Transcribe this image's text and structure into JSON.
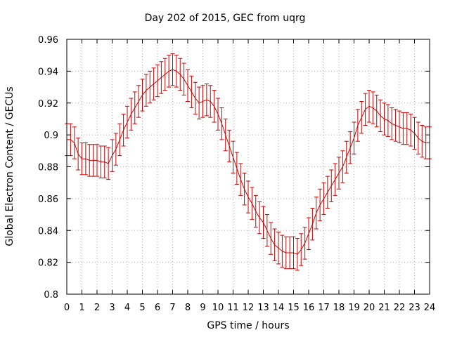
{
  "chart_data": {
    "type": "line",
    "title": "Day 202 of 2015, GEC from uqrg",
    "xlabel": "GPS time / hours",
    "ylabel": "Global Electron Content / GECUs",
    "xlim": [
      0,
      24
    ],
    "ylim": [
      0.8,
      0.96
    ],
    "x_ticks": [
      "0",
      "1",
      "2",
      "3",
      "4",
      "5",
      "6",
      "7",
      "8",
      "9",
      "10",
      "11",
      "12",
      "13",
      "14",
      "15",
      "16",
      "17",
      "18",
      "19",
      "20",
      "21",
      "22",
      "23",
      "24"
    ],
    "y_ticks": [
      "0.8",
      "0.82",
      "0.84",
      "0.86",
      "0.88",
      "0.9",
      "0.92",
      "0.94",
      "0.96"
    ],
    "grid": true,
    "color": "#cc0000",
    "series": [
      {
        "x": [
          0,
          0.25,
          0.5,
          0.75,
          1,
          1.25,
          1.5,
          1.75,
          2,
          2.25,
          2.5,
          2.75,
          3,
          3.25,
          3.5,
          3.75,
          4,
          4.25,
          4.5,
          4.75,
          5,
          5.25,
          5.5,
          5.75,
          6,
          6.25,
          6.5,
          6.75,
          7,
          7.25,
          7.5,
          7.75,
          8,
          8.25,
          8.5,
          8.75,
          9,
          9.25,
          9.5,
          9.75,
          10,
          10.25,
          10.5,
          10.75,
          11,
          11.25,
          11.5,
          11.75,
          12,
          12.25,
          12.5,
          12.75,
          13,
          13.25,
          13.5,
          13.75,
          14,
          14.25,
          14.5,
          14.75,
          15,
          15.25,
          15.5,
          15.75,
          16,
          16.25,
          16.5,
          16.75,
          17,
          17.25,
          17.5,
          17.75,
          18,
          18.25,
          18.5,
          18.75,
          19,
          19.25,
          19.5,
          19.75,
          20,
          20.25,
          20.5,
          20.75,
          21,
          21.25,
          21.5,
          21.75,
          22,
          22.25,
          22.5,
          22.75,
          23,
          23.25,
          23.5,
          23.75,
          24
        ],
        "y": [
          0.897,
          0.897,
          0.895,
          0.888,
          0.885,
          0.885,
          0.884,
          0.884,
          0.884,
          0.883,
          0.883,
          0.882,
          0.887,
          0.891,
          0.897,
          0.903,
          0.908,
          0.913,
          0.917,
          0.921,
          0.925,
          0.928,
          0.93,
          0.932,
          0.934,
          0.936,
          0.938,
          0.94,
          0.941,
          0.94,
          0.938,
          0.935,
          0.931,
          0.927,
          0.923,
          0.92,
          0.921,
          0.922,
          0.921,
          0.918,
          0.913,
          0.907,
          0.9,
          0.893,
          0.886,
          0.879,
          0.872,
          0.866,
          0.861,
          0.857,
          0.852,
          0.848,
          0.845,
          0.84,
          0.835,
          0.831,
          0.829,
          0.827,
          0.826,
          0.826,
          0.826,
          0.825,
          0.828,
          0.832,
          0.838,
          0.844,
          0.851,
          0.856,
          0.86,
          0.864,
          0.868,
          0.872,
          0.876,
          0.88,
          0.886,
          0.892,
          0.898,
          0.906,
          0.911,
          0.916,
          0.918,
          0.917,
          0.915,
          0.912,
          0.91,
          0.909,
          0.907,
          0.906,
          0.905,
          0.904,
          0.904,
          0.903,
          0.901,
          0.898,
          0.896,
          0.895,
          0.895
        ],
        "error": 0.01
      }
    ]
  }
}
